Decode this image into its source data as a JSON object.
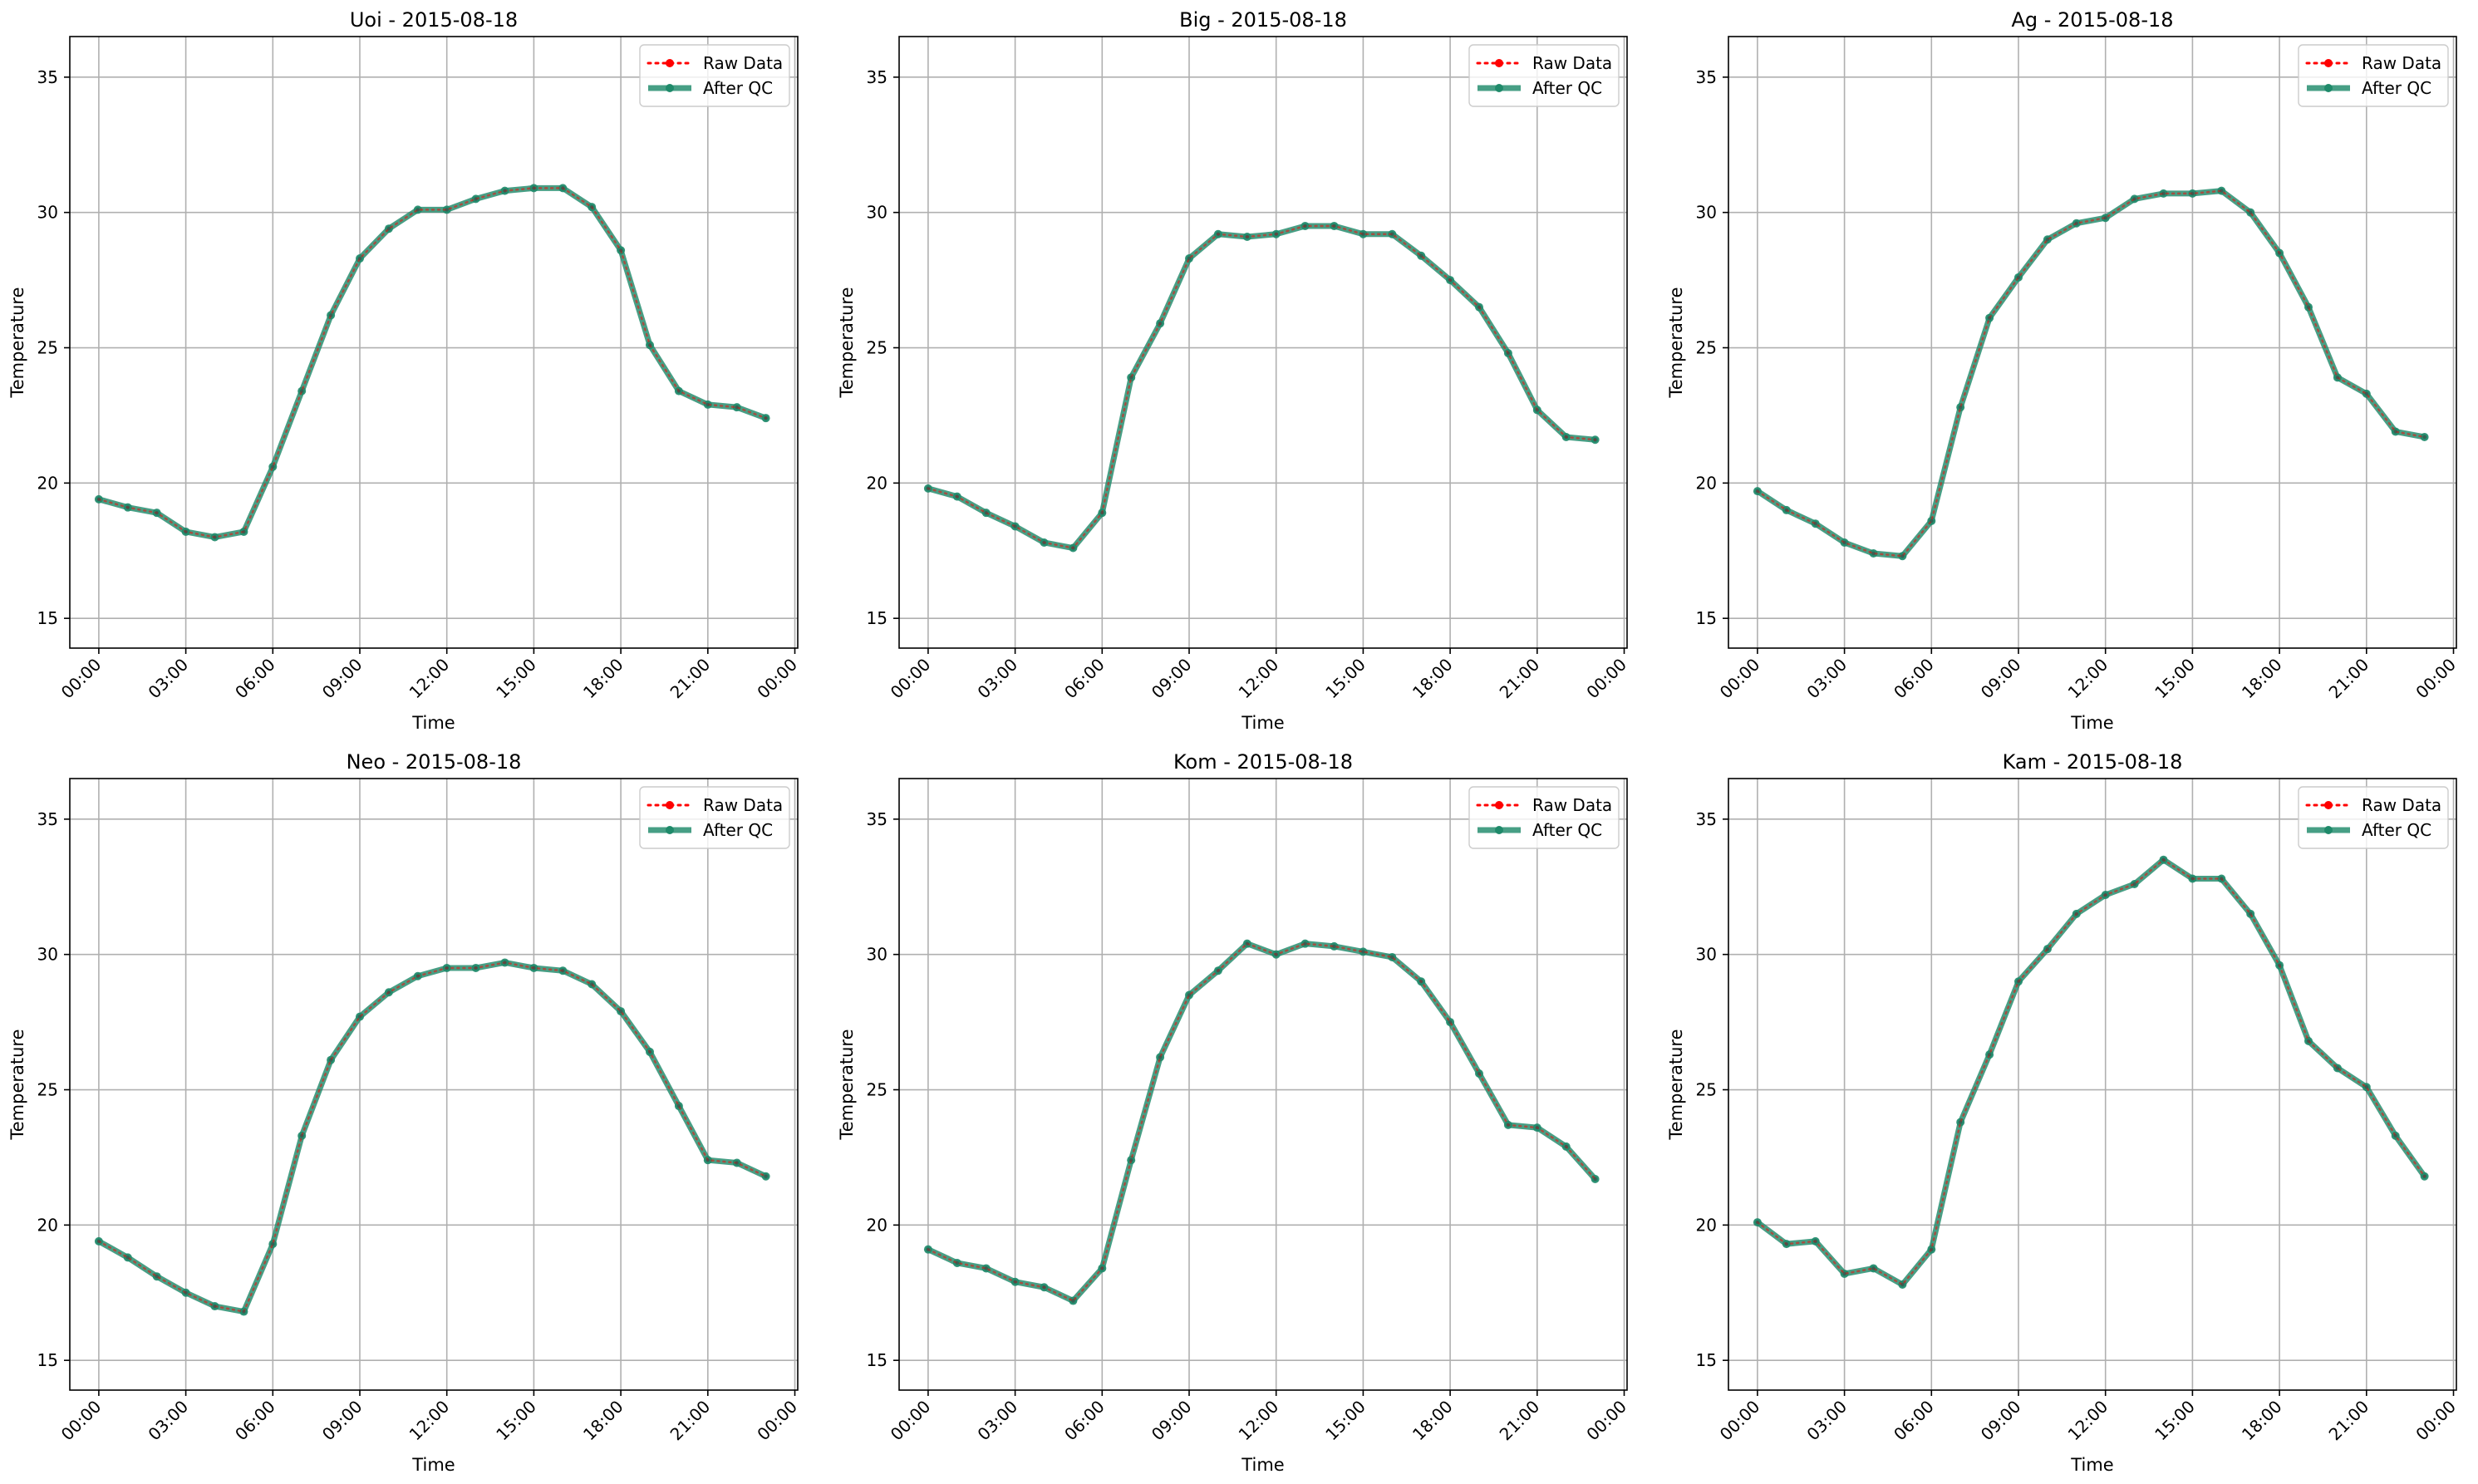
{
  "legend": {
    "raw_label": "Raw Data",
    "qc_label": "After QC"
  },
  "colors": {
    "raw": "#ff0000",
    "qc": "#1f8a6a",
    "grid": "#b0b0b0"
  },
  "chart_data": [
    {
      "type": "line",
      "title": "Uoi - 2015-08-18",
      "xlabel": "Time",
      "ylabel": "Temperature",
      "x_unit": "hour",
      "x": [
        0,
        1,
        2,
        3,
        4,
        5,
        6,
        7,
        8,
        9,
        10,
        11,
        12,
        13,
        14,
        15,
        16,
        17,
        18,
        19,
        20,
        21,
        22,
        23
      ],
      "xlim": [
        -1.0,
        24.1
      ],
      "xticks": [
        "00:00",
        "03:00",
        "06:00",
        "09:00",
        "12:00",
        "15:00",
        "18:00",
        "21:00",
        "00:00"
      ],
      "ylim": [
        13.9,
        36.5
      ],
      "yticks": [
        15,
        20,
        25,
        30,
        35
      ],
      "grid": true,
      "legend_position": "top-right",
      "series": [
        {
          "name": "Raw Data",
          "values": [
            19.4,
            19.1,
            18.9,
            18.2,
            18.0,
            18.2,
            20.6,
            23.4,
            26.2,
            28.3,
            29.4,
            30.1,
            30.1,
            30.5,
            30.8,
            30.9,
            30.9,
            30.2,
            28.6,
            25.1,
            23.4,
            22.9,
            22.8,
            22.4
          ]
        },
        {
          "name": "After QC",
          "values": [
            19.4,
            19.1,
            18.9,
            18.2,
            18.0,
            18.2,
            20.6,
            23.4,
            26.2,
            28.3,
            29.4,
            30.1,
            30.1,
            30.5,
            30.8,
            30.9,
            30.9,
            30.2,
            28.6,
            25.1,
            23.4,
            22.9,
            22.8,
            22.4
          ]
        }
      ]
    },
    {
      "type": "line",
      "title": "Big - 2015-08-18",
      "xlabel": "Time",
      "ylabel": "Temperature",
      "x_unit": "hour",
      "x": [
        0,
        1,
        2,
        3,
        4,
        5,
        6,
        7,
        8,
        9,
        10,
        11,
        12,
        13,
        14,
        15,
        16,
        17,
        18,
        19,
        20,
        21,
        22,
        23
      ],
      "xlim": [
        -1.0,
        24.1
      ],
      "xticks": [
        "00:00",
        "03:00",
        "06:00",
        "09:00",
        "12:00",
        "15:00",
        "18:00",
        "21:00",
        "00:00"
      ],
      "ylim": [
        13.9,
        36.5
      ],
      "yticks": [
        15,
        20,
        25,
        30,
        35
      ],
      "grid": true,
      "legend_position": "top-right",
      "series": [
        {
          "name": "Raw Data",
          "values": [
            19.8,
            19.5,
            18.9,
            18.4,
            17.8,
            17.6,
            18.9,
            23.9,
            25.9,
            28.3,
            29.2,
            29.1,
            29.2,
            29.5,
            29.5,
            29.2,
            29.2,
            28.4,
            27.5,
            26.5,
            24.8,
            22.7,
            21.7,
            21.6
          ]
        },
        {
          "name": "After QC",
          "values": [
            19.8,
            19.5,
            18.9,
            18.4,
            17.8,
            17.6,
            18.9,
            23.9,
            25.9,
            28.3,
            29.2,
            29.1,
            29.2,
            29.5,
            29.5,
            29.2,
            29.2,
            28.4,
            27.5,
            26.5,
            24.8,
            22.7,
            21.7,
            21.6
          ]
        }
      ]
    },
    {
      "type": "line",
      "title": "Ag - 2015-08-18",
      "xlabel": "Time",
      "ylabel": "Temperature",
      "x_unit": "hour",
      "x": [
        0,
        1,
        2,
        3,
        4,
        5,
        6,
        7,
        8,
        9,
        10,
        11,
        12,
        13,
        14,
        15,
        16,
        17,
        18,
        19,
        20,
        21,
        22,
        23
      ],
      "xlim": [
        -1.0,
        24.1
      ],
      "xticks": [
        "00:00",
        "03:00",
        "06:00",
        "09:00",
        "12:00",
        "15:00",
        "18:00",
        "21:00",
        "00:00"
      ],
      "ylim": [
        13.9,
        36.5
      ],
      "yticks": [
        15,
        20,
        25,
        30,
        35
      ],
      "grid": true,
      "legend_position": "top-right",
      "series": [
        {
          "name": "Raw Data",
          "values": [
            19.7,
            19.0,
            18.5,
            17.8,
            17.4,
            17.3,
            18.6,
            22.8,
            26.1,
            27.6,
            29.0,
            29.6,
            29.8,
            30.5,
            30.7,
            30.7,
            30.8,
            30.0,
            28.5,
            26.5,
            23.9,
            23.3,
            21.9,
            21.7
          ]
        },
        {
          "name": "After QC",
          "values": [
            19.7,
            19.0,
            18.5,
            17.8,
            17.4,
            17.3,
            18.6,
            22.8,
            26.1,
            27.6,
            29.0,
            29.6,
            29.8,
            30.5,
            30.7,
            30.7,
            30.8,
            30.0,
            28.5,
            26.5,
            23.9,
            23.3,
            21.9,
            21.7
          ]
        }
      ]
    },
    {
      "type": "line",
      "title": "Neo - 2015-08-18",
      "xlabel": "Time",
      "ylabel": "Temperature",
      "x_unit": "hour",
      "x": [
        0,
        1,
        2,
        3,
        4,
        5,
        6,
        7,
        8,
        9,
        10,
        11,
        12,
        13,
        14,
        15,
        16,
        17,
        18,
        19,
        20,
        21,
        22,
        23
      ],
      "xlim": [
        -1.0,
        24.1
      ],
      "xticks": [
        "00:00",
        "03:00",
        "06:00",
        "09:00",
        "12:00",
        "15:00",
        "18:00",
        "21:00",
        "00:00"
      ],
      "ylim": [
        13.9,
        36.5
      ],
      "yticks": [
        15,
        20,
        25,
        30,
        35
      ],
      "grid": true,
      "legend_position": "top-right",
      "series": [
        {
          "name": "Raw Data",
          "values": [
            19.4,
            18.8,
            18.1,
            17.5,
            17.0,
            16.8,
            19.3,
            23.3,
            26.1,
            27.7,
            28.6,
            29.2,
            29.5,
            29.5,
            29.7,
            29.5,
            29.4,
            28.9,
            27.9,
            26.4,
            24.4,
            22.4,
            22.3,
            21.8
          ]
        },
        {
          "name": "After QC",
          "values": [
            19.4,
            18.8,
            18.1,
            17.5,
            17.0,
            16.8,
            19.3,
            23.3,
            26.1,
            27.7,
            28.6,
            29.2,
            29.5,
            29.5,
            29.7,
            29.5,
            29.4,
            28.9,
            27.9,
            26.4,
            24.4,
            22.4,
            22.3,
            21.8
          ]
        }
      ]
    },
    {
      "type": "line",
      "title": "Kom - 2015-08-18",
      "xlabel": "Time",
      "ylabel": "Temperature",
      "x_unit": "hour",
      "x": [
        0,
        1,
        2,
        3,
        4,
        5,
        6,
        7,
        8,
        9,
        10,
        11,
        12,
        13,
        14,
        15,
        16,
        17,
        18,
        19,
        20,
        21,
        22,
        23
      ],
      "xlim": [
        -1.0,
        24.1
      ],
      "xticks": [
        "00:00",
        "03:00",
        "06:00",
        "09:00",
        "12:00",
        "15:00",
        "18:00",
        "21:00",
        "00:00"
      ],
      "ylim": [
        13.9,
        36.5
      ],
      "yticks": [
        15,
        20,
        25,
        30,
        35
      ],
      "grid": true,
      "legend_position": "top-right",
      "series": [
        {
          "name": "Raw Data",
          "values": [
            19.1,
            18.6,
            18.4,
            17.9,
            17.7,
            17.2,
            18.4,
            22.4,
            26.2,
            28.5,
            29.4,
            30.4,
            30.0,
            30.4,
            30.3,
            30.1,
            29.9,
            29.0,
            27.5,
            25.6,
            23.7,
            23.6,
            22.9,
            21.7
          ]
        },
        {
          "name": "After QC",
          "values": [
            19.1,
            18.6,
            18.4,
            17.9,
            17.7,
            17.2,
            18.4,
            22.4,
            26.2,
            28.5,
            29.4,
            30.4,
            30.0,
            30.4,
            30.3,
            30.1,
            29.9,
            29.0,
            27.5,
            25.6,
            23.7,
            23.6,
            22.9,
            21.7
          ]
        }
      ]
    },
    {
      "type": "line",
      "title": "Kam - 2015-08-18",
      "xlabel": "Time",
      "ylabel": "Temperature",
      "x_unit": "hour",
      "x": [
        0,
        1,
        2,
        3,
        4,
        5,
        6,
        7,
        8,
        9,
        10,
        11,
        12,
        13,
        14,
        15,
        16,
        17,
        18,
        19,
        20,
        21,
        22,
        23
      ],
      "xlim": [
        -1.0,
        24.1
      ],
      "xticks": [
        "00:00",
        "03:00",
        "06:00",
        "09:00",
        "12:00",
        "15:00",
        "18:00",
        "21:00",
        "00:00"
      ],
      "ylim": [
        13.9,
        36.5
      ],
      "yticks": [
        15,
        20,
        25,
        30,
        35
      ],
      "grid": true,
      "legend_position": "top-right",
      "series": [
        {
          "name": "Raw Data",
          "values": [
            20.1,
            19.3,
            19.4,
            18.2,
            18.4,
            17.8,
            19.1,
            23.8,
            26.3,
            29.0,
            30.2,
            31.5,
            32.2,
            32.6,
            33.5,
            32.8,
            32.8,
            31.5,
            29.6,
            26.8,
            25.8,
            25.1,
            23.3,
            21.8
          ]
        },
        {
          "name": "After QC",
          "values": [
            20.1,
            19.3,
            19.4,
            18.2,
            18.4,
            17.8,
            19.1,
            23.8,
            26.3,
            29.0,
            30.2,
            31.5,
            32.2,
            32.6,
            33.5,
            32.8,
            32.8,
            31.5,
            29.6,
            26.8,
            25.8,
            25.1,
            23.3,
            21.8
          ]
        }
      ]
    }
  ]
}
